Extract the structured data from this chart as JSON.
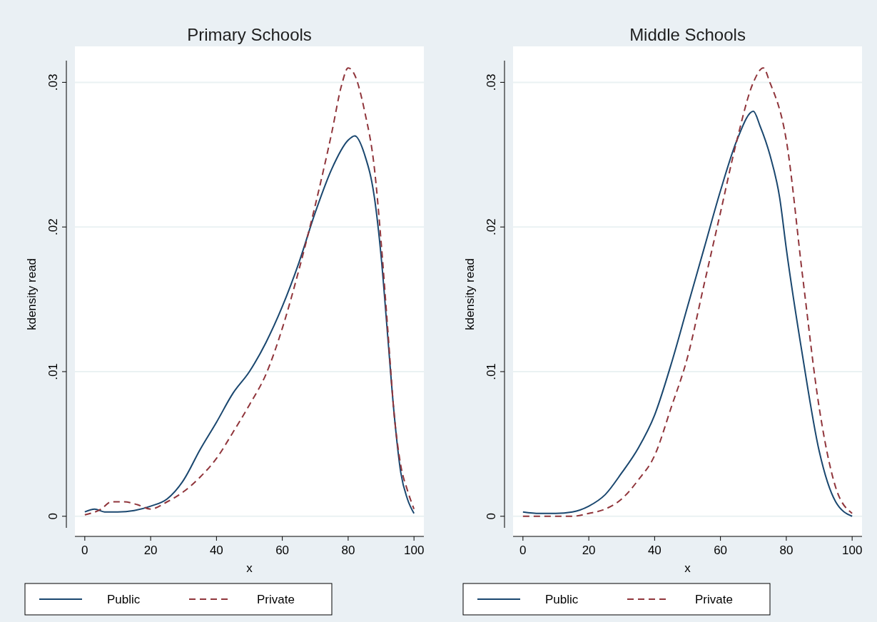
{
  "chart_data": [
    {
      "type": "line",
      "title": "Primary Schools",
      "xlabel": "x",
      "ylabel": "kdensity read",
      "xlim": [
        -3,
        103
      ],
      "ylim": [
        -0.0008,
        0.0315
      ],
      "xticks": [
        0,
        20,
        40,
        60,
        80,
        100
      ],
      "yticks": [
        {
          "value": 0,
          "label": "0"
        },
        {
          "value": 0.01,
          "label": ".01"
        },
        {
          "value": 0.02,
          "label": ".02"
        },
        {
          "value": 0.03,
          "label": ".03"
        }
      ],
      "grid": "y",
      "legend": "bottom",
      "series": [
        {
          "name": "Public",
          "color": "#1a476f",
          "line_style": "solid",
          "x": [
            0,
            3,
            6,
            10,
            15,
            20,
            25,
            30,
            35,
            40,
            45,
            50,
            55,
            60,
            65,
            70,
            75,
            80,
            82,
            85,
            88,
            90,
            92,
            94,
            96,
            98,
            100
          ],
          "values": [
            0.0003,
            0.0005,
            0.0003,
            0.0003,
            0.0004,
            0.0007,
            0.0012,
            0.0025,
            0.0046,
            0.0065,
            0.0085,
            0.01,
            0.012,
            0.0145,
            0.0175,
            0.021,
            0.024,
            0.026,
            0.0263,
            0.025,
            0.022,
            0.018,
            0.0125,
            0.007,
            0.003,
            0.0012,
            0.0002
          ]
        },
        {
          "name": "Private",
          "color": "#90353b",
          "line_style": "dashed",
          "x": [
            0,
            5,
            8,
            12,
            16,
            20,
            25,
            30,
            35,
            40,
            45,
            50,
            55,
            60,
            65,
            70,
            75,
            78,
            80,
            82,
            85,
            88,
            90,
            92,
            94,
            96,
            98,
            100
          ],
          "values": [
            0.0001,
            0.0005,
            0.001,
            0.001,
            0.0008,
            0.0005,
            0.001,
            0.0017,
            0.0027,
            0.004,
            0.0058,
            0.0077,
            0.0098,
            0.013,
            0.017,
            0.0215,
            0.0265,
            0.0298,
            0.031,
            0.0305,
            0.028,
            0.024,
            0.019,
            0.013,
            0.007,
            0.0035,
            0.0018,
            0.0005
          ]
        }
      ]
    },
    {
      "type": "line",
      "title": "Middle Schools",
      "xlabel": "x",
      "ylabel": "kdensity read",
      "xlim": [
        -3,
        103
      ],
      "ylim": [
        -0.0008,
        0.0315
      ],
      "xticks": [
        0,
        20,
        40,
        60,
        80,
        100
      ],
      "yticks": [
        {
          "value": 0,
          "label": "0"
        },
        {
          "value": 0.01,
          "label": ".01"
        },
        {
          "value": 0.02,
          "label": ".02"
        },
        {
          "value": 0.03,
          "label": ".03"
        }
      ],
      "grid": "y",
      "legend": "bottom",
      "series": [
        {
          "name": "Public",
          "color": "#1a476f",
          "line_style": "solid",
          "x": [
            0,
            5,
            10,
            15,
            20,
            25,
            30,
            35,
            40,
            45,
            50,
            55,
            60,
            65,
            70,
            72,
            75,
            78,
            80,
            85,
            90,
            95,
            100
          ],
          "values": [
            0.0003,
            0.0002,
            0.0002,
            0.0003,
            0.0007,
            0.0015,
            0.003,
            0.0047,
            0.007,
            0.0105,
            0.0145,
            0.0185,
            0.0225,
            0.026,
            0.028,
            0.027,
            0.025,
            0.022,
            0.0185,
            0.011,
            0.0045,
            0.001,
            0
          ]
        },
        {
          "name": "Private",
          "color": "#90353b",
          "line_style": "dashed",
          "x": [
            0,
            10,
            15,
            20,
            25,
            30,
            35,
            40,
            45,
            50,
            55,
            60,
            65,
            70,
            73,
            75,
            80,
            85,
            90,
            95,
            100
          ],
          "values": [
            0,
            0,
            0,
            0.0002,
            0.0005,
            0.0012,
            0.0025,
            0.0042,
            0.0075,
            0.011,
            0.016,
            0.021,
            0.026,
            0.03,
            0.031,
            0.03,
            0.026,
            0.0165,
            0.0075,
            0.002,
            0.0002
          ]
        }
      ]
    }
  ]
}
